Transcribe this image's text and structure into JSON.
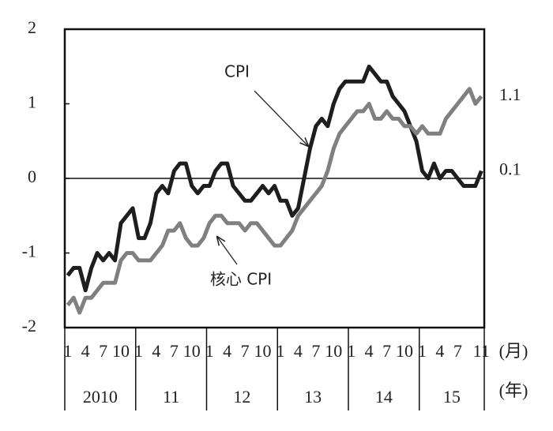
{
  "chart_data": {
    "type": "line",
    "categories": [
      "1",
      null,
      null,
      "4",
      null,
      null,
      "7",
      null,
      null,
      "10",
      null,
      null,
      "1",
      null,
      null,
      "4",
      null,
      null,
      "7",
      null,
      null,
      "10",
      null,
      null,
      "1",
      null,
      null,
      "4",
      null,
      null,
      "7",
      null,
      null,
      "10",
      null,
      null,
      "1",
      null,
      null,
      "4",
      null,
      null,
      "7",
      null,
      null,
      "10",
      null,
      null,
      "1",
      null,
      null,
      "4",
      null,
      null,
      "7",
      null,
      null,
      "10",
      null,
      null,
      "1",
      null,
      null,
      "4",
      null,
      null,
      "7",
      null,
      null,
      null,
      "11"
    ],
    "x_unit": "(月)",
    "year_groups": [
      "2010",
      "11",
      "12",
      "13",
      "14",
      "15"
    ],
    "year_unit": "(年)",
    "ylim": [
      -2,
      2
    ],
    "yticks": [
      -2,
      -1,
      0,
      1,
      2
    ],
    "zero_line": true,
    "series": [
      {
        "name": "CPI",
        "color": "#1e1e1e",
        "values": [
          -1.3,
          -1.2,
          -1.2,
          -1.5,
          -1.2,
          -1.0,
          -1.1,
          -1.0,
          -1.1,
          -0.6,
          -0.5,
          -0.4,
          -0.8,
          -0.8,
          -0.6,
          -0.2,
          -0.1,
          -0.2,
          0.1,
          0.2,
          0.2,
          -0.1,
          -0.2,
          -0.1,
          -0.1,
          0.1,
          0.2,
          0.2,
          -0.1,
          -0.2,
          -0.3,
          -0.3,
          -0.2,
          -0.1,
          -0.2,
          -0.1,
          -0.3,
          -0.3,
          -0.5,
          -0.4,
          0.0,
          0.4,
          0.7,
          0.8,
          0.7,
          1.0,
          1.2,
          1.3,
          1.3,
          1.3,
          1.3,
          1.5,
          1.4,
          1.3,
          1.3,
          1.1,
          1.0,
          0.9,
          0.7,
          0.5,
          0.1,
          0.0,
          0.2,
          0.0,
          0.1,
          0.1,
          0.0,
          -0.1,
          -0.1,
          -0.1,
          0.1
        ]
      },
      {
        "name": "核心 CPI",
        "color": "#808080",
        "values": [
          -1.7,
          -1.6,
          -1.8,
          -1.6,
          -1.6,
          -1.5,
          -1.4,
          -1.4,
          -1.4,
          -1.1,
          -1.0,
          -1.0,
          -1.1,
          -1.1,
          -1.1,
          -1.0,
          -0.9,
          -0.7,
          -0.7,
          -0.6,
          -0.8,
          -0.9,
          -0.9,
          -0.8,
          -0.6,
          -0.5,
          -0.5,
          -0.6,
          -0.6,
          -0.6,
          -0.7,
          -0.6,
          -0.6,
          -0.7,
          -0.8,
          -0.9,
          -0.9,
          -0.8,
          -0.7,
          -0.5,
          -0.4,
          -0.3,
          -0.2,
          -0.1,
          0.1,
          0.4,
          0.6,
          0.7,
          0.8,
          0.9,
          0.9,
          1.0,
          0.8,
          0.8,
          0.9,
          0.8,
          0.8,
          0.7,
          0.7,
          0.6,
          0.7,
          0.6,
          0.6,
          0.6,
          0.8,
          0.9,
          1.0,
          1.1,
          1.2,
          1.0,
          1.1
        ]
      }
    ]
  }
}
